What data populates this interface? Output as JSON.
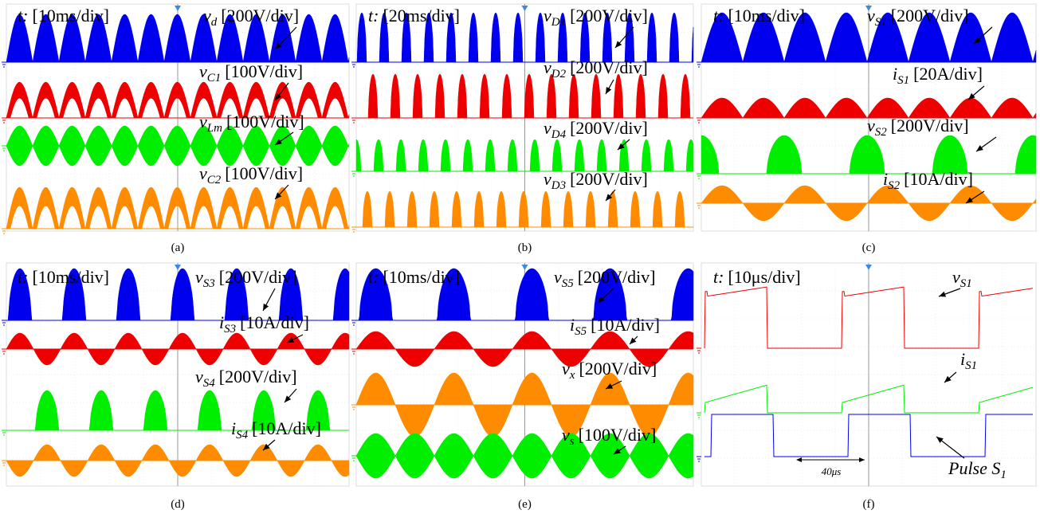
{
  "panels": [
    {
      "caption": "(a)",
      "timebase": {
        "symbol": "t:",
        "scale": "[10ms/div]"
      },
      "channels": [
        {
          "symbol": "v",
          "subscript": "d",
          "scale": "[200V/div]"
        },
        {
          "symbol": "v",
          "subscript": "C1",
          "scale": "[100V/div]"
        },
        {
          "symbol": "v",
          "subscript": "Lm",
          "scale": "[100V/div]"
        },
        {
          "symbol": "v",
          "subscript": "C2",
          "scale": "[100V/div]"
        }
      ]
    },
    {
      "caption": "(b)",
      "timebase": {
        "symbol": "t:",
        "scale": "[20ms/div]"
      },
      "channels": [
        {
          "symbol": "v",
          "subscript": "D1",
          "scale": "[200V/div]"
        },
        {
          "symbol": "v",
          "subscript": "D2",
          "scale": "[200V/div]"
        },
        {
          "symbol": "v",
          "subscript": "D4",
          "scale": "[200V/div]"
        },
        {
          "symbol": "v",
          "subscript": "D3",
          "scale": "[200V/div]"
        }
      ]
    },
    {
      "caption": "(c)",
      "timebase": {
        "symbol": "t:",
        "scale": "[10ms/div]"
      },
      "channels": [
        {
          "symbol": "v",
          "subscript": "S1",
          "scale": "[200V/div]"
        },
        {
          "symbol": "i",
          "subscript": "S1",
          "scale": "[20A/div]"
        },
        {
          "symbol": "v",
          "subscript": "S2",
          "scale": "[200V/div]"
        },
        {
          "symbol": "i",
          "subscript": "S2",
          "scale": "[10A/div]"
        }
      ]
    },
    {
      "caption": "(d)",
      "timebase": {
        "symbol": "t:",
        "scale": "[10ms/div]"
      },
      "channels": [
        {
          "symbol": "v",
          "subscript": "S3",
          "scale": "[200V/div]"
        },
        {
          "symbol": "i",
          "subscript": "S3",
          "scale": "[10A/div]"
        },
        {
          "symbol": "v",
          "subscript": "S4",
          "scale": "[200V/div]"
        },
        {
          "symbol": "i",
          "subscript": "S4",
          "scale": "[10A/div]"
        }
      ]
    },
    {
      "caption": "(e)",
      "timebase": {
        "symbol": "t:",
        "scale": "[10ms/div]"
      },
      "channels": [
        {
          "symbol": "v",
          "subscript": "S5",
          "scale": "[200V/div]"
        },
        {
          "symbol": "i",
          "subscript": "S5",
          "scale": "[10A/div]"
        },
        {
          "symbol": "v",
          "subscript": "x",
          "scale": "[200V/div]"
        },
        {
          "symbol": "v",
          "subscript": "s",
          "scale": "[100V/div]"
        }
      ]
    },
    {
      "caption": "(f)",
      "timebase": {
        "symbol": "t:",
        "scale": "[10μs/div]"
      },
      "channels": [
        {
          "symbol": "v",
          "subscript": "S1"
        },
        {
          "symbol": "i",
          "subscript": "S1"
        },
        {
          "symbol": "Pulse S",
          "subscript": "1"
        }
      ],
      "annotation": "40μs"
    }
  ]
}
